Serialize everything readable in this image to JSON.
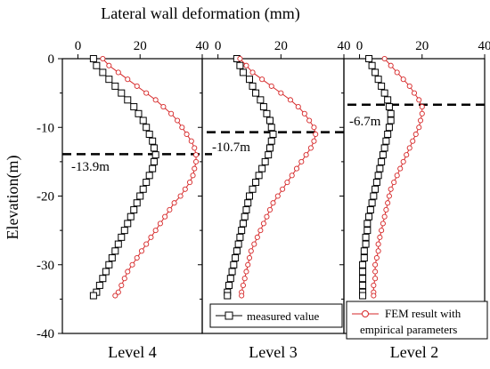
{
  "figure": {
    "top_axis_title": "Lateral wall deformation (mm)",
    "y_axis_title": "Elevation(m)"
  },
  "legend": {
    "measured": "measured value",
    "fem_line1": "FEM result with",
    "fem_line2": "empirical parameters"
  },
  "colors": {
    "measured": "#000000",
    "fem": "#d62728",
    "axis": "#000000"
  },
  "chart_data": [
    {
      "type": "line",
      "title": "Level 4",
      "xlabel": "Lateral wall deformation (mm)",
      "ylabel": "Elevation(m)",
      "xlim": [
        -5,
        40
      ],
      "ylim": [
        -40,
        0
      ],
      "xticks": [
        0,
        20,
        40
      ],
      "yticks": [
        0,
        -10,
        -20,
        -30,
        -40
      ],
      "series": [
        {
          "name": "measured value",
          "marker": "square",
          "points": [
            [
              5,
              0
            ],
            [
              6,
              -1
            ],
            [
              8,
              -2
            ],
            [
              10,
              -3
            ],
            [
              12,
              -4
            ],
            [
              14,
              -5
            ],
            [
              16,
              -6
            ],
            [
              18,
              -7
            ],
            [
              19.5,
              -8
            ],
            [
              21,
              -9
            ],
            [
              22,
              -10
            ],
            [
              23,
              -11
            ],
            [
              24,
              -12
            ],
            [
              24.5,
              -13
            ],
            [
              25,
              -14
            ],
            [
              24.5,
              -15
            ],
            [
              24,
              -16
            ],
            [
              23,
              -17
            ],
            [
              22,
              -18
            ],
            [
              21,
              -19
            ],
            [
              20,
              -20
            ],
            [
              19,
              -21
            ],
            [
              18,
              -22
            ],
            [
              17,
              -23
            ],
            [
              16,
              -24
            ],
            [
              15,
              -25
            ],
            [
              14,
              -26
            ],
            [
              13,
              -27
            ],
            [
              12,
              -28
            ],
            [
              11,
              -29
            ],
            [
              10,
              -30
            ],
            [
              9,
              -31
            ],
            [
              8,
              -32
            ],
            [
              7,
              -33
            ],
            [
              6,
              -34
            ],
            [
              5,
              -34.5
            ]
          ]
        },
        {
          "name": "FEM result with empirical parameters",
          "marker": "circle",
          "points": [
            [
              8,
              0
            ],
            [
              10,
              -1
            ],
            [
              13,
              -2
            ],
            [
              16,
              -3
            ],
            [
              19,
              -4
            ],
            [
              22,
              -5
            ],
            [
              25,
              -6
            ],
            [
              27.5,
              -7
            ],
            [
              30,
              -8
            ],
            [
              32,
              -9
            ],
            [
              33.5,
              -10
            ],
            [
              35,
              -11
            ],
            [
              36.5,
              -12
            ],
            [
              37.5,
              -13
            ],
            [
              38,
              -14
            ],
            [
              38,
              -15
            ],
            [
              37.5,
              -16
            ],
            [
              37,
              -17
            ],
            [
              36,
              -18
            ],
            [
              34.5,
              -19
            ],
            [
              33,
              -20
            ],
            [
              31,
              -21
            ],
            [
              29.5,
              -22
            ],
            [
              28,
              -23
            ],
            [
              26.5,
              -24
            ],
            [
              25,
              -25
            ],
            [
              23.5,
              -26
            ],
            [
              22,
              -27
            ],
            [
              20.5,
              -28
            ],
            [
              19,
              -29
            ],
            [
              17.5,
              -30
            ],
            [
              16,
              -31
            ],
            [
              15,
              -32
            ],
            [
              14,
              -33
            ],
            [
              13,
              -34
            ],
            [
              12,
              -34.5
            ]
          ]
        }
      ],
      "reference_line": {
        "y": -13.9,
        "label": "-13.9m"
      }
    },
    {
      "type": "line",
      "title": "Level 3",
      "xlabel": "Lateral wall deformation (mm)",
      "ylabel": "Elevation(m)",
      "xlim": [
        -5,
        40
      ],
      "ylim": [
        -40,
        0
      ],
      "xticks": [
        0,
        20,
        40
      ],
      "yticks": [
        0,
        -10,
        -20,
        -30,
        -40
      ],
      "series": [
        {
          "name": "measured value",
          "marker": "square",
          "points": [
            [
              6,
              0
            ],
            [
              7,
              -1
            ],
            [
              8,
              -2
            ],
            [
              10,
              -3
            ],
            [
              11,
              -4
            ],
            [
              12,
              -5
            ],
            [
              13.5,
              -6
            ],
            [
              14.5,
              -7
            ],
            [
              15.5,
              -8
            ],
            [
              16.5,
              -9
            ],
            [
              17,
              -10
            ],
            [
              17.5,
              -11
            ],
            [
              17,
              -12
            ],
            [
              16.5,
              -13
            ],
            [
              16,
              -14
            ],
            [
              15,
              -15
            ],
            [
              14,
              -16
            ],
            [
              13,
              -17
            ],
            [
              12,
              -18
            ],
            [
              11,
              -19
            ],
            [
              10,
              -20
            ],
            [
              9.5,
              -21
            ],
            [
              9,
              -22
            ],
            [
              8.5,
              -23
            ],
            [
              8,
              -24
            ],
            [
              7.5,
              -25
            ],
            [
              7,
              -26
            ],
            [
              6.5,
              -27
            ],
            [
              6,
              -28
            ],
            [
              5.5,
              -29
            ],
            [
              5,
              -30
            ],
            [
              4.5,
              -31
            ],
            [
              4,
              -32
            ],
            [
              3.5,
              -33
            ],
            [
              3,
              -34
            ],
            [
              3,
              -34.5
            ]
          ]
        },
        {
          "name": "FEM result with empirical parameters",
          "marker": "circle",
          "points": [
            [
              7,
              0
            ],
            [
              9,
              -1
            ],
            [
              11,
              -2
            ],
            [
              14,
              -3
            ],
            [
              17,
              -4
            ],
            [
              20,
              -5
            ],
            [
              23,
              -6
            ],
            [
              25.5,
              -7
            ],
            [
              27.5,
              -8
            ],
            [
              29,
              -9
            ],
            [
              30.5,
              -10
            ],
            [
              31,
              -11
            ],
            [
              30.5,
              -12
            ],
            [
              29.5,
              -13
            ],
            [
              28,
              -14
            ],
            [
              26.5,
              -15
            ],
            [
              25,
              -16
            ],
            [
              23.5,
              -17
            ],
            [
              22,
              -18
            ],
            [
              20.5,
              -19
            ],
            [
              19,
              -20
            ],
            [
              17.5,
              -21
            ],
            [
              16.5,
              -22
            ],
            [
              15.5,
              -23
            ],
            [
              14.5,
              -24
            ],
            [
              13.5,
              -25
            ],
            [
              12.5,
              -26
            ],
            [
              11.5,
              -27
            ],
            [
              10.5,
              -28
            ],
            [
              10,
              -29
            ],
            [
              9.5,
              -30
            ],
            [
              9,
              -31
            ],
            [
              8.5,
              -32
            ],
            [
              8,
              -33
            ],
            [
              7.5,
              -34
            ],
            [
              7.5,
              -34.5
            ]
          ]
        }
      ],
      "reference_line": {
        "y": -10.7,
        "label": "-10.7m"
      }
    },
    {
      "type": "line",
      "title": "Level 2",
      "xlabel": "Lateral wall deformation (mm)",
      "ylabel": "Elevation(m)",
      "xlim": [
        -5,
        40
      ],
      "ylim": [
        -40,
        0
      ],
      "xticks": [
        0,
        20,
        40
      ],
      "yticks": [
        0,
        -10,
        -20,
        -30,
        -40
      ],
      "series": [
        {
          "name": "measured value",
          "marker": "square",
          "points": [
            [
              3,
              0
            ],
            [
              4,
              -1
            ],
            [
              5,
              -2
            ],
            [
              6,
              -3
            ],
            [
              7,
              -4
            ],
            [
              8,
              -5
            ],
            [
              9,
              -6
            ],
            [
              9.5,
              -7
            ],
            [
              10,
              -8
            ],
            [
              10,
              -9
            ],
            [
              9.5,
              -10
            ],
            [
              9,
              -11
            ],
            [
              8.5,
              -12
            ],
            [
              8,
              -13
            ],
            [
              7.5,
              -14
            ],
            [
              7,
              -15
            ],
            [
              6.5,
              -16
            ],
            [
              6,
              -17
            ],
            [
              5.5,
              -18
            ],
            [
              5,
              -19
            ],
            [
              4.5,
              -20
            ],
            [
              4,
              -21
            ],
            [
              3.5,
              -22
            ],
            [
              3,
              -23
            ],
            [
              2.5,
              -24
            ],
            [
              2.5,
              -25
            ],
            [
              2,
              -26
            ],
            [
              2,
              -27
            ],
            [
              1.5,
              -28
            ],
            [
              1.5,
              -29
            ],
            [
              1,
              -30
            ],
            [
              1,
              -31
            ],
            [
              1,
              -32
            ],
            [
              1,
              -33
            ],
            [
              1,
              -34
            ],
            [
              1,
              -34.5
            ]
          ]
        },
        {
          "name": "FEM result with empirical parameters",
          "marker": "circle",
          "points": [
            [
              8,
              0
            ],
            [
              10,
              -1
            ],
            [
              12,
              -2
            ],
            [
              14,
              -3
            ],
            [
              16,
              -4
            ],
            [
              17.5,
              -5
            ],
            [
              19,
              -6
            ],
            [
              20,
              -7
            ],
            [
              20,
              -8
            ],
            [
              19.5,
              -9
            ],
            [
              19,
              -10
            ],
            [
              18,
              -11
            ],
            [
              17,
              -12
            ],
            [
              16,
              -13
            ],
            [
              15,
              -14
            ],
            [
              14,
              -15
            ],
            [
              13,
              -16
            ],
            [
              12,
              -17
            ],
            [
              11,
              -18
            ],
            [
              10,
              -19
            ],
            [
              9.5,
              -20
            ],
            [
              9,
              -21
            ],
            [
              8.5,
              -22
            ],
            [
              8,
              -23
            ],
            [
              7.5,
              -24
            ],
            [
              7,
              -25
            ],
            [
              6.5,
              -26
            ],
            [
              6,
              -27
            ],
            [
              6,
              -28
            ],
            [
              5.5,
              -29
            ],
            [
              5,
              -30
            ],
            [
              5,
              -31
            ],
            [
              5,
              -32
            ],
            [
              4.5,
              -33
            ],
            [
              4.5,
              -34
            ],
            [
              4.5,
              -34.5
            ]
          ]
        }
      ],
      "reference_line": {
        "y": -6.7,
        "label": "-6.7m"
      }
    }
  ]
}
